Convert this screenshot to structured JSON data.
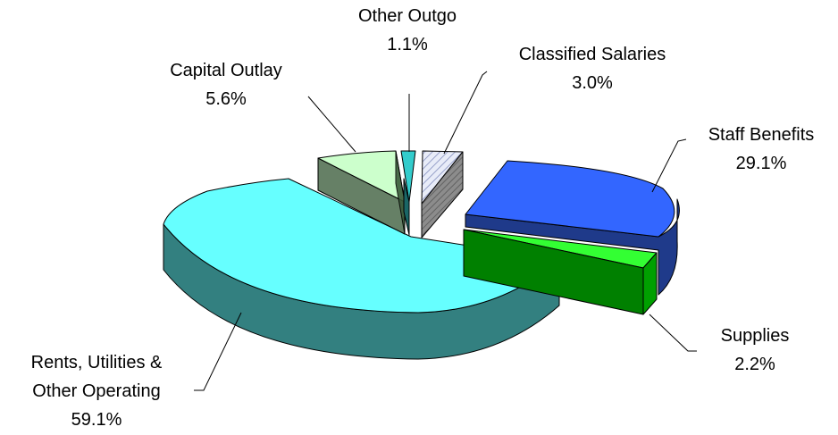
{
  "chart_data": {
    "type": "pie",
    "style": "3d-exploded",
    "title": "",
    "slices": [
      {
        "name": "Classified Salaries",
        "label": "Classified Salaries",
        "value_label": "3.0%",
        "value": 3.0,
        "top_color": "#dfe6f5",
        "side_color": "#808080",
        "pattern": "diagonal-hatch"
      },
      {
        "name": "Staff Benefits",
        "label": "Staff Benefits",
        "value_label": "29.1%",
        "value": 29.1,
        "top_color": "#3366ff",
        "side_color": "#1f3a8a"
      },
      {
        "name": "Supplies",
        "label": "Supplies",
        "value_label": "2.2%",
        "value": 2.2,
        "top_color": "#33ff33",
        "side_color": "#008000"
      },
      {
        "name": "Rents, Utilities & Other Operating",
        "label_lines": [
          "Rents, Utilities &",
          "Other Operating"
        ],
        "value_label": "59.1%",
        "value": 59.1,
        "top_color": "#66ffff",
        "side_color": "#338080"
      },
      {
        "name": "Capital Outlay",
        "label": "Capital Outlay",
        "value_label": "5.6%",
        "value": 5.6,
        "top_color": "#ccffcc",
        "side_color": "#668066"
      },
      {
        "name": "Other Outgo",
        "label": "Other Outgo",
        "value_label": "1.1%",
        "value": 1.1,
        "top_color": "#33cccc",
        "side_color": "#1a6666"
      }
    ],
    "legend": "none"
  }
}
